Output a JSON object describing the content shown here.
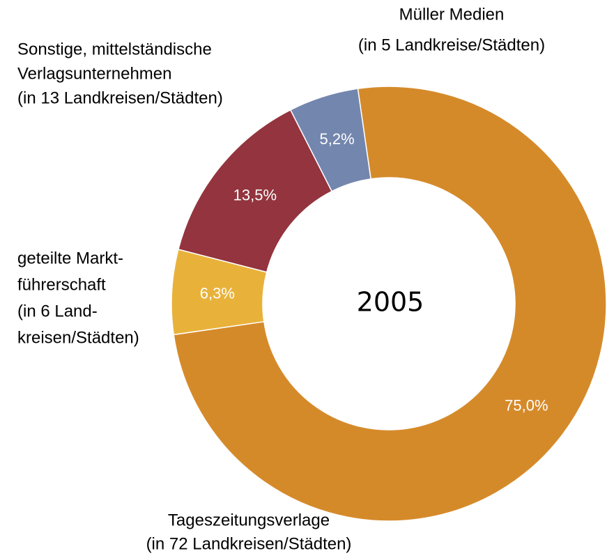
{
  "chart_data": {
    "type": "donut",
    "center_label": "2005",
    "categories": [
      [
        "Tageszeitungsverlage",
        "(in 72 Landkreisen/Städten)"
      ],
      [
        "geteilte Markt-",
        "führerschaft",
        "(in 6 Land-",
        "kreisen/Städten)"
      ],
      [
        "Sonstige, mittelständische",
        "Verlagsunternehmen",
        "(in 13 Landkreisen/Städten)"
      ],
      [
        "Müller Medien",
        "(in 5 Landkreise/Städten)"
      ]
    ],
    "values": [
      75.0,
      6.3,
      13.5,
      5.2
    ],
    "value_labels": [
      "75,0%",
      "6,3%",
      "13,5%",
      "5,2%"
    ],
    "colors": [
      "#d58a2a",
      "#e8b23a",
      "#93343e",
      "#7386ae"
    ]
  }
}
